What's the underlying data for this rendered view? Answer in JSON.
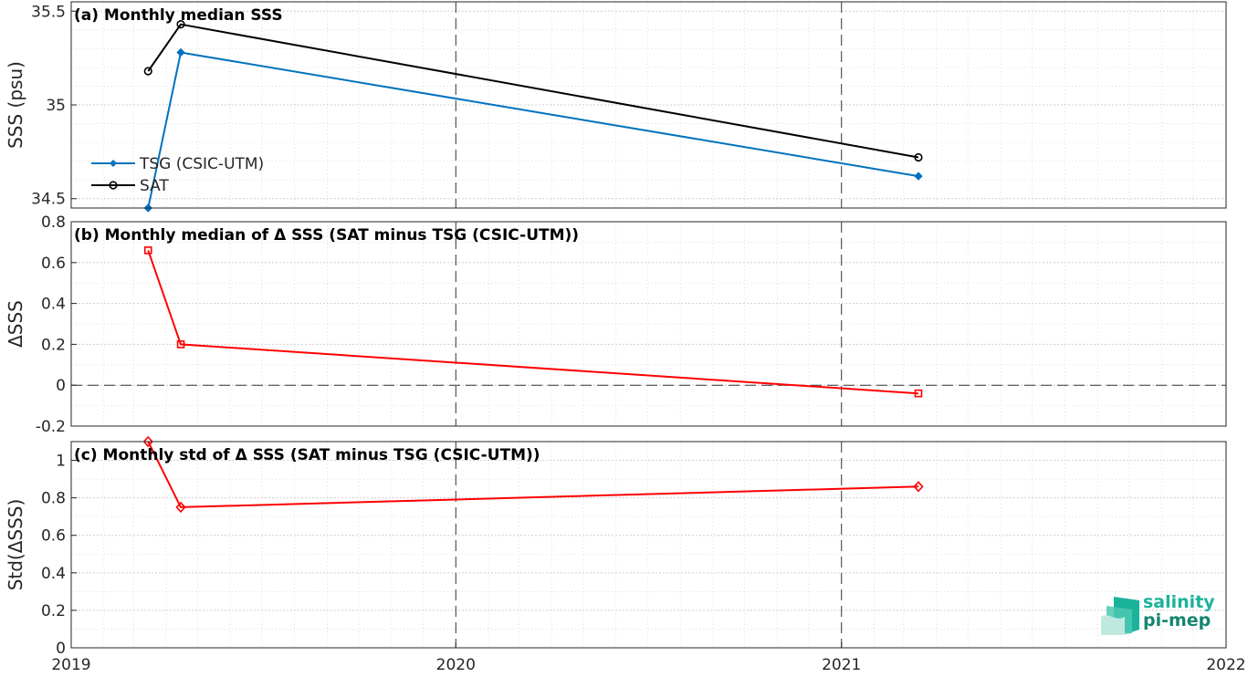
{
  "chart_data": [
    {
      "type": "line",
      "title": "(a) Monthly median SSS",
      "xlabel": "",
      "ylabel": "SSS (psu)",
      "xlim": [
        "2019-01-01",
        "2022-01-01"
      ],
      "ylim": [
        34.45,
        35.55
      ],
      "yticks": [
        "34.5",
        "35",
        "35.5"
      ],
      "grid": true,
      "legend_position": "lower-left",
      "series": [
        {
          "name": "TSG (CSIC-UTM)",
          "color": "#0072BD",
          "marker": "diamond-filled",
          "x": [
            "2019-03-15",
            "2019-04-15",
            "2021-03-15"
          ],
          "values": [
            34.45,
            35.28,
            34.62
          ]
        },
        {
          "name": "SAT",
          "color": "#000000",
          "marker": "circle-open",
          "x": [
            "2019-03-15",
            "2019-04-15",
            "2021-03-15"
          ],
          "values": [
            35.18,
            35.43,
            34.72
          ]
        }
      ]
    },
    {
      "type": "line",
      "title": "(b) Monthly median of Δ SSS (SAT minus TSG (CSIC-UTM))",
      "xlabel": "",
      "ylabel": "ΔSSS",
      "xlim": [
        "2019-01-01",
        "2022-01-01"
      ],
      "ylim": [
        -0.2,
        0.8
      ],
      "yticks": [
        "-0.2",
        "0",
        "0.2",
        "0.4",
        "0.6",
        "0.8"
      ],
      "grid": true,
      "zero_line": true,
      "series": [
        {
          "color": "#FF0000",
          "marker": "square-open",
          "x": [
            "2019-03-15",
            "2019-04-15",
            "2021-03-15"
          ],
          "values": [
            0.66,
            0.2,
            -0.04
          ]
        }
      ]
    },
    {
      "type": "line",
      "title": "(c) Monthly std of Δ SSS (SAT minus TSG (CSIC-UTM))",
      "xlabel": "",
      "ylabel": "Std(ΔSSS)",
      "xlim": [
        "2019-01-01",
        "2022-01-01"
      ],
      "ylim": [
        0,
        1.1
      ],
      "yticks": [
        "0",
        "0.2",
        "0.4",
        "0.6",
        "0.8",
        "1"
      ],
      "xticks": [
        "2019",
        "2020",
        "2021",
        "2022"
      ],
      "grid": true,
      "series": [
        {
          "color": "#FF0000",
          "marker": "diamond-open",
          "x": [
            "2019-03-15",
            "2019-04-15",
            "2021-03-15"
          ],
          "values": [
            1.1,
            0.75,
            0.86
          ]
        }
      ]
    }
  ],
  "logo": {
    "line1": "salinity",
    "line2": "pi-mep",
    "color": "#1ab39a"
  }
}
